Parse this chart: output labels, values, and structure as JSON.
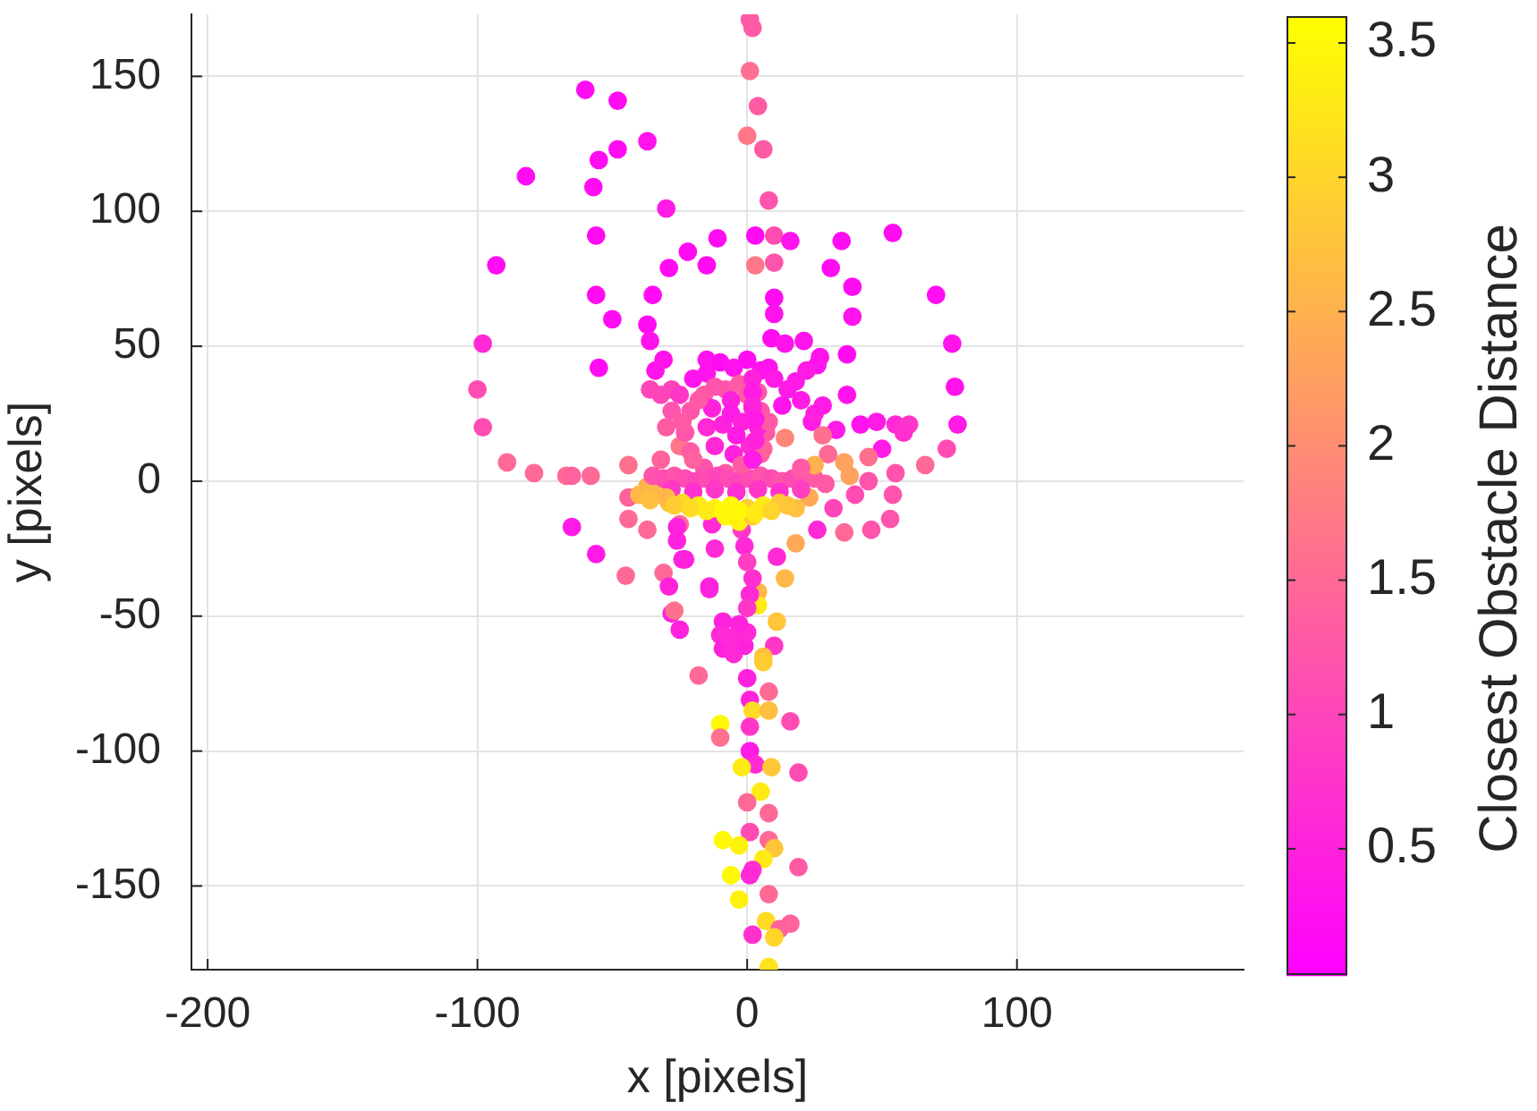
{
  "chart_data": {
    "type": "scatter",
    "xlabel": "x [pixels]",
    "ylabel": "y [pixels]",
    "clabel": "Closest Obstacle Distance",
    "x": [
      1,
      2,
      1,
      4,
      0,
      6,
      8,
      -60,
      -48,
      -37,
      -48,
      -55,
      -82,
      -57,
      -30,
      -56,
      -11,
      3,
      -22,
      -15,
      -29,
      3,
      -93,
      -56,
      -35,
      -50,
      -37,
      -36,
      -98,
      -31,
      -55,
      -15,
      -34,
      -100,
      -36,
      -28,
      -32,
      -98,
      -89,
      -79,
      -67,
      -65,
      -58,
      -44,
      -32,
      -25,
      -44,
      -37,
      -35,
      -29,
      10,
      16,
      10,
      35,
      54,
      31,
      39,
      39,
      10,
      10,
      70,
      76,
      77,
      78,
      74,
      66,
      37,
      37,
      9,
      14,
      21,
      27,
      26,
      22,
      18,
      15,
      13,
      8,
      33,
      42,
      48,
      55,
      60,
      58,
      50,
      55,
      54,
      53,
      24,
      28,
      45,
      36,
      38,
      23,
      14,
      46,
      36,
      26,
      18,
      11,
      14,
      4,
      4,
      -14,
      -23,
      11,
      10,
      6,
      6,
      0,
      -18,
      8,
      1,
      2,
      8,
      16,
      -10,
      -10,
      1,
      1,
      3,
      -2,
      9,
      19,
      5,
      0,
      8,
      1,
      8,
      10,
      6,
      -9,
      -3,
      19,
      2,
      1,
      -6,
      -3,
      8,
      7,
      16,
      12,
      10,
      2,
      8,
      -65,
      -56,
      -45,
      -44,
      -37,
      -31,
      -29,
      -24,
      -14,
      -12,
      -25,
      -28,
      -27,
      -25,
      -26,
      -26,
      -13,
      -9,
      -10,
      -9,
      -5,
      -1,
      0,
      -3,
      -6,
      -2,
      -1,
      0,
      2,
      1,
      0,
      -23,
      -21,
      -16,
      -8,
      0,
      5,
      7,
      5,
      -8,
      -16,
      -21,
      -15,
      -13,
      -6,
      2,
      4,
      1,
      -5,
      -12,
      -9,
      -6,
      -2,
      -4,
      -35,
      -31,
      -27,
      -23,
      -19,
      -15,
      -11,
      -7,
      -3,
      1,
      5,
      9,
      13,
      17,
      21,
      25,
      29,
      -28,
      -20,
      -12,
      -4,
      4,
      12,
      20,
      -30,
      -24,
      -18,
      -12,
      -6,
      0,
      6,
      12,
      18,
      -8,
      -3,
      2,
      -15,
      -10,
      -5,
      0,
      5,
      10,
      20,
      25,
      28,
      -20,
      -25,
      -28,
      -30,
      30,
      25,
      20,
      32,
      40,
      45,
      -18,
      -12,
      -3,
      4,
      8,
      6,
      -2,
      -20,
      -24,
      2,
      2,
      2,
      3,
      3,
      2,
      -40,
      -36,
      -27,
      -21,
      -15,
      -9,
      -3,
      3,
      9,
      15
    ],
    "values": [
      171,
      168,
      152,
      139,
      128,
      123,
      104,
      145,
      141,
      126,
      123,
      119,
      113,
      109,
      101,
      91,
      90,
      91,
      85,
      80,
      79,
      80,
      80,
      69,
      69,
      60,
      58,
      52,
      51,
      45,
      42,
      45,
      41,
      34,
      34,
      34,
      32,
      20,
      7,
      3,
      2,
      2,
      2,
      6,
      8,
      13,
      -6,
      -2,
      -3,
      -8,
      91,
      89,
      81,
      89,
      92,
      79,
      72,
      61,
      68,
      62,
      69,
      51,
      35,
      21,
      12,
      6,
      47,
      32,
      53,
      51,
      52,
      46,
      43,
      41,
      37,
      34,
      28,
      42,
      19,
      21,
      22,
      21,
      21,
      18,
      12,
      3,
      -5,
      -14,
      22,
      17,
      9,
      7,
      2,
      -6,
      16,
      -18,
      -19,
      -18,
      -23,
      -28,
      -36,
      -41,
      -46,
      -39,
      -29,
      -52,
      -61,
      -65,
      -67,
      -73,
      -72,
      -78,
      -81,
      -85,
      -85,
      -89,
      -90,
      -95,
      -91,
      -100,
      -105,
      -106,
      -106,
      -108,
      -115,
      -119,
      -123,
      -130,
      -133,
      -136,
      -140,
      -133,
      -135,
      -143,
      -144,
      -146,
      -146,
      -155,
      -153,
      -163,
      -164,
      -166,
      -169,
      -168,
      -180,
      -17,
      -27,
      -35,
      -14,
      -18,
      -34,
      -39,
      -29,
      -40,
      -25,
      -16,
      -49,
      -48,
      -55,
      -17,
      -22,
      -16,
      -52,
      -57,
      -62,
      -64,
      -61,
      -56,
      -53,
      -58,
      -18,
      -24,
      -30,
      -36,
      -42,
      -47,
      18,
      26,
      32,
      34,
      32,
      26,
      18,
      10,
      3,
      5,
      11,
      20,
      27,
      30,
      27,
      20,
      13,
      10,
      13,
      21,
      25,
      22,
      17,
      2,
      1,
      2,
      1,
      0,
      1,
      2,
      1,
      0,
      1,
      2,
      1,
      0,
      1,
      2,
      1,
      -1,
      -3,
      -4,
      -3,
      -4,
      -3,
      -4,
      -3,
      -6,
      -8,
      -9,
      -10,
      -9,
      -10,
      -9,
      -8,
      -10,
      -13,
      -15,
      -13,
      40,
      44,
      42,
      45,
      41,
      38,
      30,
      25,
      28,
      38,
      32,
      26,
      20,
      10,
      6,
      5,
      -10,
      -5,
      0,
      30,
      35,
      36,
      33,
      22,
      12,
      6,
      8,
      22,
      38,
      33,
      28,
      23,
      15,
      8,
      -5,
      -7,
      -9,
      -10,
      -11,
      -11,
      -11,
      -12,
      -11,
      -9
    ],
    "cvalues": [
      1.3,
      1.3,
      1.6,
      1.3,
      1.7,
      1.3,
      1.2,
      0.2,
      0.2,
      0.3,
      0.2,
      0.2,
      0.2,
      0.2,
      0.4,
      0.2,
      0.2,
      0.2,
      0.2,
      0.2,
      0.2,
      1.7,
      0.2,
      0.2,
      0.2,
      0.2,
      0.2,
      0.3,
      0.6,
      0.3,
      0.2,
      0.3,
      0.3,
      1.1,
      1.0,
      1.0,
      1.0,
      1.1,
      1.5,
      1.5,
      1.5,
      1.4,
      1.5,
      1.6,
      1.4,
      1.7,
      1.4,
      2.5,
      2.6,
      2.8,
      1.1,
      0.3,
      1.2,
      0.2,
      0.2,
      0.2,
      0.2,
      0.3,
      0.2,
      0.3,
      0.2,
      0.3,
      0.3,
      0.4,
      1.1,
      1.5,
      0.2,
      0.3,
      0.2,
      0.3,
      0.3,
      0.3,
      0.3,
      0.4,
      0.4,
      0.4,
      0.3,
      0.3,
      0.4,
      0.3,
      0.4,
      0.6,
      0.8,
      0.7,
      0.4,
      1.2,
      1.2,
      1.2,
      0.4,
      1.6,
      1.6,
      2.3,
      2.3,
      2.4,
      1.9,
      1.2,
      1.5,
      0.6,
      2.4,
      0.6,
      2.6,
      2.6,
      3.3,
      0.5,
      0.5,
      2.8,
      0.8,
      2.7,
      2.9,
      0.5,
      1.5,
      1.5,
      0.5,
      3.1,
      2.7,
      1.1,
      3.5,
      1.6,
      0.8,
      0.4,
      0.6,
      3.3,
      2.8,
      1.1,
      3.3,
      1.5,
      1.5,
      1.1,
      1.5,
      2.8,
      3.3,
      3.5,
      3.4,
      1.3,
      0.7,
      0.6,
      3.5,
      3.4,
      1.5,
      3.1,
      1.4,
      1.4,
      3.0,
      0.7,
      3.2,
      0.4,
      0.4,
      1.5,
      1.5,
      1.5,
      1.5,
      0.5,
      0.5,
      0.5,
      0.6,
      1.5,
      0.5,
      1.6,
      0.5,
      0.5,
      0.5,
      0.6,
      0.5,
      0.6,
      0.5,
      0.6,
      0.5,
      0.6,
      0.5,
      0.6,
      0.8,
      0.6,
      0.9,
      0.7,
      0.6,
      0.8,
      1.2,
      1.2,
      1.3,
      1.2,
      1.3,
      1.2,
      1.3,
      1.3,
      1.3,
      1.2,
      1.3,
      0.6,
      0.5,
      0.5,
      0.6,
      0.5,
      0.6,
      0.5,
      0.6,
      0.5,
      0.4,
      0.5,
      0.4,
      1.2,
      1.1,
      1.2,
      1.1,
      1.0,
      1.1,
      1.0,
      1.1,
      1.0,
      1.1,
      1.2,
      1.1,
      1.2,
      1.1,
      1.2,
      1.3,
      1.3,
      0.8,
      0.7,
      0.8,
      0.7,
      0.8,
      0.7,
      0.9,
      2.6,
      3.0,
      3.3,
      3.4,
      3.5,
      2.9,
      3.3,
      2.8,
      2.7,
      3.5,
      3.4,
      2.9,
      0.3,
      0.2,
      0.3,
      0.2,
      0.3,
      0.4,
      0.4,
      0.5,
      0.4,
      0.3,
      0.8,
      1.2,
      1.3,
      1.5,
      2.5,
      1.3,
      1.0,
      1.1,
      1.2,
      1.3,
      1.2,
      1.3,
      1.2,
      1.3,
      1.4,
      1.3,
      1.4,
      1.3,
      0.5,
      0.4,
      0.5,
      0.4,
      0.5,
      0.4,
      2.6,
      2.7,
      2.9,
      3.1,
      3.3,
      3.5,
      3.5,
      3.3,
      3.0,
      2.8
    ],
    "xlim": [
      -206,
      184
    ],
    "ylim": [
      -181,
      173
    ],
    "xticks": [
      -200,
      -100,
      0,
      100
    ],
    "yticks": [
      -150,
      -100,
      -50,
      0,
      50,
      100,
      150
    ],
    "clim": [
      0.03,
      3.6
    ],
    "cticks": [
      0.5,
      1,
      1.5,
      2,
      2.5,
      3,
      3.5
    ],
    "grid": true,
    "marker": "circle"
  }
}
